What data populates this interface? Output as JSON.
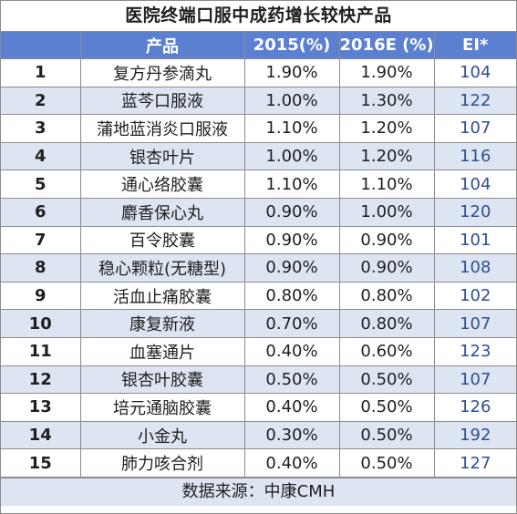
{
  "title": "医院终端口服中成药增长较快产品",
  "headers": {
    "rank": "",
    "product": "产品",
    "y2015": "2015(%)",
    "y2016": "2016E (%)",
    "ei": "EI*"
  },
  "rows": [
    {
      "rank": "1",
      "product": "复方丹参滴丸",
      "y2015": "1.90%",
      "y2016": "1.90%",
      "ei": "104"
    },
    {
      "rank": "2",
      "product": "蓝芩口服液",
      "y2015": "1.00%",
      "y2016": "1.30%",
      "ei": "122"
    },
    {
      "rank": "3",
      "product": "蒲地蓝消炎口服液",
      "y2015": "1.10%",
      "y2016": "1.20%",
      "ei": "107"
    },
    {
      "rank": "4",
      "product": "银杏叶片",
      "y2015": "1.00%",
      "y2016": "1.20%",
      "ei": "116"
    },
    {
      "rank": "5",
      "product": "通心络胶囊",
      "y2015": "1.10%",
      "y2016": "1.10%",
      "ei": "104"
    },
    {
      "rank": "6",
      "product": "麝香保心丸",
      "y2015": "0.90%",
      "y2016": "1.00%",
      "ei": "120"
    },
    {
      "rank": "7",
      "product": "百令胶囊",
      "y2015": "0.90%",
      "y2016": "0.90%",
      "ei": "101"
    },
    {
      "rank": "8",
      "product": "稳心颗粒(无糖型)",
      "y2015": "0.90%",
      "y2016": "0.90%",
      "ei": "108"
    },
    {
      "rank": "9",
      "product": "活血止痛胶囊",
      "y2015": "0.80%",
      "y2016": "0.80%",
      "ei": "102"
    },
    {
      "rank": "10",
      "product": "康复新液",
      "y2015": "0.70%",
      "y2016": "0.80%",
      "ei": "107"
    },
    {
      "rank": "11",
      "product": "血塞通片",
      "y2015": "0.40%",
      "y2016": "0.60%",
      "ei": "123"
    },
    {
      "rank": "12",
      "product": "银杏叶胶囊",
      "y2015": "0.50%",
      "y2016": "0.50%",
      "ei": "107"
    },
    {
      "rank": "13",
      "product": "培元通脑胶囊",
      "y2015": "0.40%",
      "y2016": "0.50%",
      "ei": "126"
    },
    {
      "rank": "14",
      "product": "小金丸",
      "y2015": "0.30%",
      "y2016": "0.50%",
      "ei": "192"
    },
    {
      "rank": "15",
      "product": "肺力咳合剂",
      "y2015": "0.40%",
      "y2016": "0.50%",
      "ei": "127"
    }
  ],
  "source": "数据来源：中康CMH",
  "colors": {
    "header_bg": "#5b7fd1",
    "stripe_bg": "#dde4f2",
    "ei_text": "#2f4f8f"
  }
}
